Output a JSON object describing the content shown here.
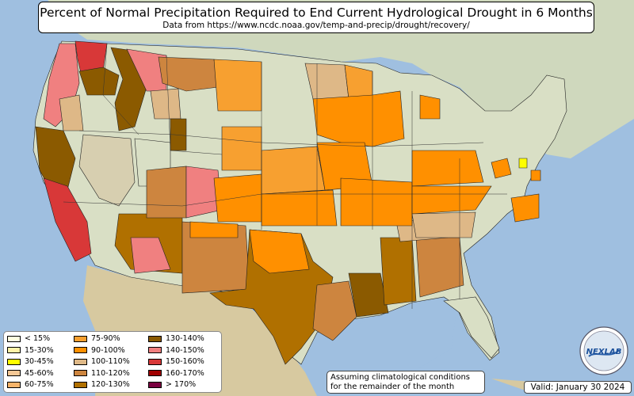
{
  "title": "Percent of Normal Precipitation Required to End Current Hydrological Drought in 6 Months",
  "subtitle": "Data from https://www.ncdc.noaa.gov/temp-and-precip/drought/recovery/",
  "legend": [
    {
      "label": "< 15%",
      "color": "#ffffe0"
    },
    {
      "label": "15-30%",
      "color": "#fff3a8"
    },
    {
      "label": "30-45%",
      "color": "#ffff00"
    },
    {
      "label": "45-60%",
      "color": "#f5c896"
    },
    {
      "label": "60-75%",
      "color": "#f7b46a"
    },
    {
      "label": "75-90%",
      "color": "#f7a030"
    },
    {
      "label": "90-100%",
      "color": "#ff9000"
    },
    {
      "label": "100-110%",
      "color": "#deb887"
    },
    {
      "label": "110-120%",
      "color": "#cd853f"
    },
    {
      "label": "120-130%",
      "color": "#b07000"
    },
    {
      "label": "130-140%",
      "color": "#8b5a00"
    },
    {
      "label": "140-150%",
      "color": "#f08080"
    },
    {
      "label": "150-160%",
      "color": "#d83838"
    },
    {
      "label": "160-170%",
      "color": "#a00000"
    },
    {
      "label": "> 170%",
      "color": "#7a0040"
    }
  ],
  "note": "Assuming climatological conditions for the remainder of the month",
  "valid": "Valid: January 30 2024",
  "logo_text": "NEXLAB",
  "colors": {
    "ocean": "#9fbfe0",
    "land": "#d9dfc5",
    "terrain": "#c9c2a0"
  }
}
